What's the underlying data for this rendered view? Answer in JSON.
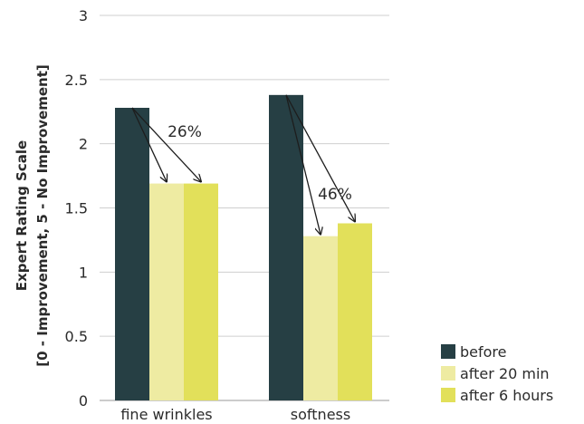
{
  "chart_data": {
    "type": "bar",
    "ylabel_line1": "Expert Rating Scale",
    "ylabel_line2": "[0 - Improvement, 5 - No Improvement]",
    "xlabel": "",
    "ylim": [
      0,
      3
    ],
    "yticks": [
      "0",
      "0.5",
      "1",
      "1.5",
      "2",
      "2.5",
      "3"
    ],
    "ytick_values": [
      0,
      0.5,
      1,
      1.5,
      2,
      2.5,
      3
    ],
    "grid": true,
    "legend_position": "bottom-right",
    "categories": [
      "fine wrinkles",
      "softness"
    ],
    "series": [
      {
        "name": "before",
        "values": [
          2.28,
          2.38
        ],
        "color": "#263f44"
      },
      {
        "name": "after 20 min",
        "values": [
          1.69,
          1.28
        ],
        "color": "#eeeba2"
      },
      {
        "name": "after 6 hours",
        "values": [
          1.69,
          1.38
        ],
        "color": "#e2e05a"
      }
    ],
    "annotations": [
      {
        "text": "26%",
        "category": "fine wrinkles"
      },
      {
        "text": "46%",
        "category": "softness"
      }
    ]
  }
}
